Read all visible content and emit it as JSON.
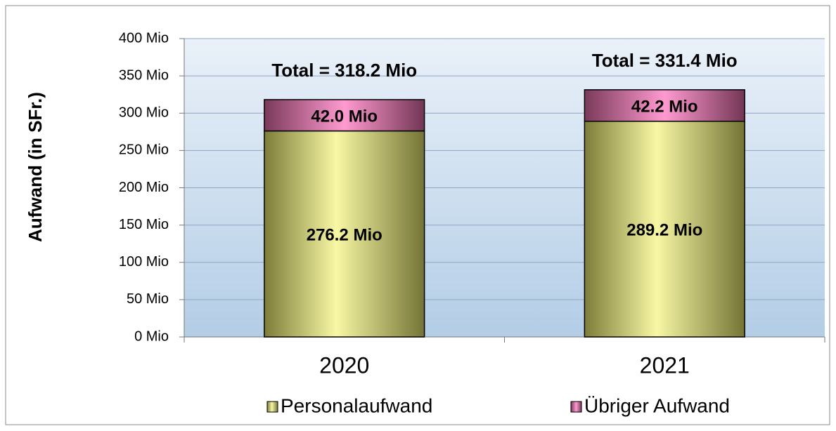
{
  "chart_data": {
    "type": "stacked_bar",
    "y_label": "Aufwand (in SFr.)",
    "categories": [
      "2020",
      "2021"
    ],
    "series": [
      {
        "name": "Personalaufwand",
        "color": "#f2f29a",
        "values": [
          276.2,
          289.2
        ],
        "value_labels": [
          "276.2 Mio",
          "289.2 Mio"
        ]
      },
      {
        "name": "Übriger Aufwand",
        "color": "#f08cc4",
        "values": [
          42.0,
          42.2
        ],
        "value_labels": [
          "42.0 Mio",
          "42.2 Mio"
        ]
      }
    ],
    "annotations": [
      "Total = 318.2 Mio",
      "Total = 331.4 Mio"
    ],
    "ylim": [
      0,
      400
    ],
    "yticks": [
      {
        "value": 0,
        "label": "0 Mio"
      },
      {
        "value": 50,
        "label": "50 Mio"
      },
      {
        "value": 100,
        "label": "100 Mio"
      },
      {
        "value": 150,
        "label": "150 Mio"
      },
      {
        "value": 200,
        "label": "200 Mio"
      },
      {
        "value": 250,
        "label": "250 Mio"
      },
      {
        "value": 300,
        "label": "300 Mio"
      },
      {
        "value": 350,
        "label": "350 Mio"
      },
      {
        "value": 400,
        "label": "400 Mio"
      }
    ],
    "grid": true,
    "legend": "bottom"
  }
}
